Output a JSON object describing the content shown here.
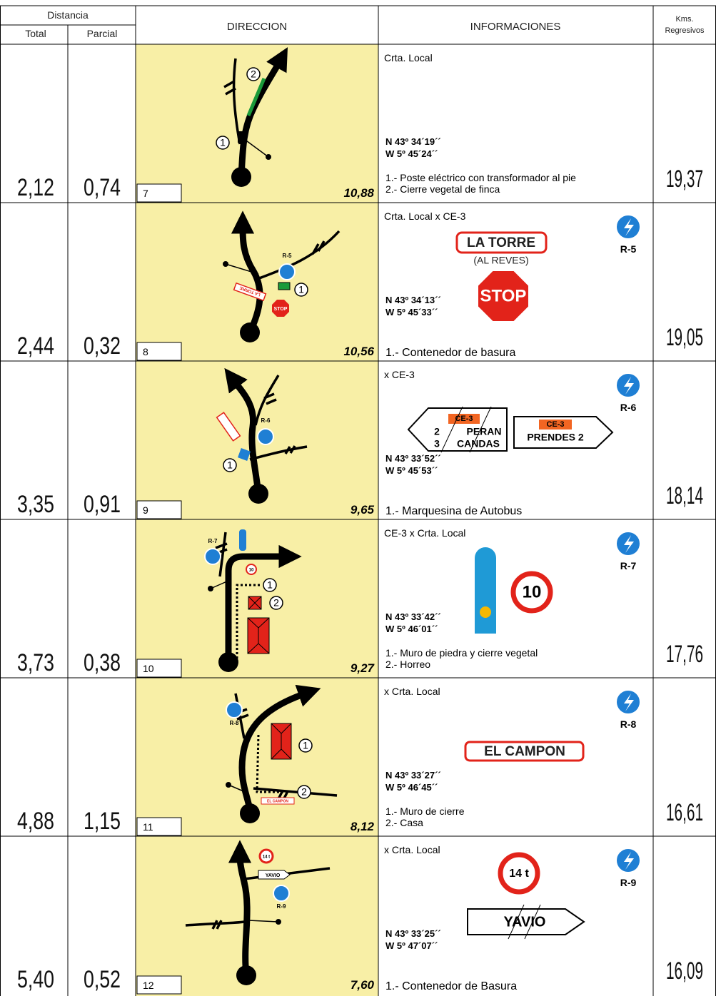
{
  "header": {
    "distance": "Distancia",
    "total": "Total",
    "partial": "Parcial",
    "direction": "DIRECCION",
    "info": "INFORMACIONES",
    "kms": "Kms.",
    "kms_sub": "Regresivos"
  },
  "rows": [
    {
      "total": "2,12",
      "partial": "0,74",
      "step": "7",
      "distance": "10,88",
      "kms": "19,37",
      "road": "Crta. Local",
      "coords": [
        "N 43º 34´19´´",
        "W  5º 45´24´´"
      ],
      "notes": [
        "1.- Poste eléctrico con transformador al pie",
        "2.- Cierre vegetal de finca"
      ],
      "diagram_labels": [
        "1",
        "2"
      ]
    },
    {
      "total": "2,44",
      "partial": "0,32",
      "step": "8",
      "distance": "10,56",
      "kms": "19,05",
      "road": "Crta. Local x CE-3",
      "refugio": "R-5",
      "coords": [
        "N 43º 34´13´´",
        "W  5º 45´33´´"
      ],
      "notes": [
        "1.- Contenedor de basura"
      ],
      "signs": [
        "LA TORRE",
        "(AL REVES)",
        "STOP"
      ],
      "diagram_labels": [
        "R-5",
        "LA TORRE",
        "STOP",
        "1"
      ]
    },
    {
      "total": "3,35",
      "partial": "0,91",
      "step": "9",
      "distance": "9,65",
      "kms": "18,14",
      "road": "x  CE-3",
      "refugio": "R-6",
      "coords": [
        "N 43º 33´52´´",
        "W  5º 45´53´´"
      ],
      "notes": [
        "1.- Marquesina de Autobus"
      ],
      "signs": [
        "CE-3",
        "PERAN",
        "CANDAS",
        "2",
        "3",
        "CE-3",
        "PRENDES  2"
      ],
      "diagram_labels": [
        "R-6",
        "1"
      ]
    },
    {
      "total": "3,73",
      "partial": "0,38",
      "step": "10",
      "distance": "9,27",
      "kms": "17,76",
      "road": "CE-3  x  Crta. Local",
      "refugio": "R-7",
      "coords": [
        "N 43º 33´42´´",
        "W  5º 46´01´´"
      ],
      "notes": [
        "1.- Muro de piedra y cierre vegetal",
        "2.- Horreo"
      ],
      "signs": [
        "10"
      ],
      "diagram_labels": [
        "R-7",
        "10",
        "1",
        "2"
      ]
    },
    {
      "total": "4,88",
      "partial": "1,15",
      "step": "11",
      "distance": "8,12",
      "kms": "16,61",
      "road": "x  Crta. Local",
      "refugio": "R-8",
      "coords": [
        "N 43º 33´27´´",
        "W  5º 46´45´´"
      ],
      "notes": [
        "1.- Muro de cierre",
        "2.- Casa"
      ],
      "signs": [
        "EL CAMPON"
      ],
      "diagram_labels": [
        "R-8",
        "EL CAMPON",
        "1",
        "2"
      ]
    },
    {
      "total": "5,40",
      "partial": "0,52",
      "step": "12",
      "distance": "7,60",
      "kms": "16,09",
      "road": "x  Crta. Local",
      "refugio": "R-9",
      "coords": [
        "N 43º 33´25´´",
        "W  5º 47´07´´"
      ],
      "notes": [
        "1.- Contenedor de Basura"
      ],
      "signs": [
        "14 t",
        "YAVIO"
      ],
      "diagram_labels": [
        "14 t",
        "YAVIO",
        "R-9"
      ]
    }
  ]
}
